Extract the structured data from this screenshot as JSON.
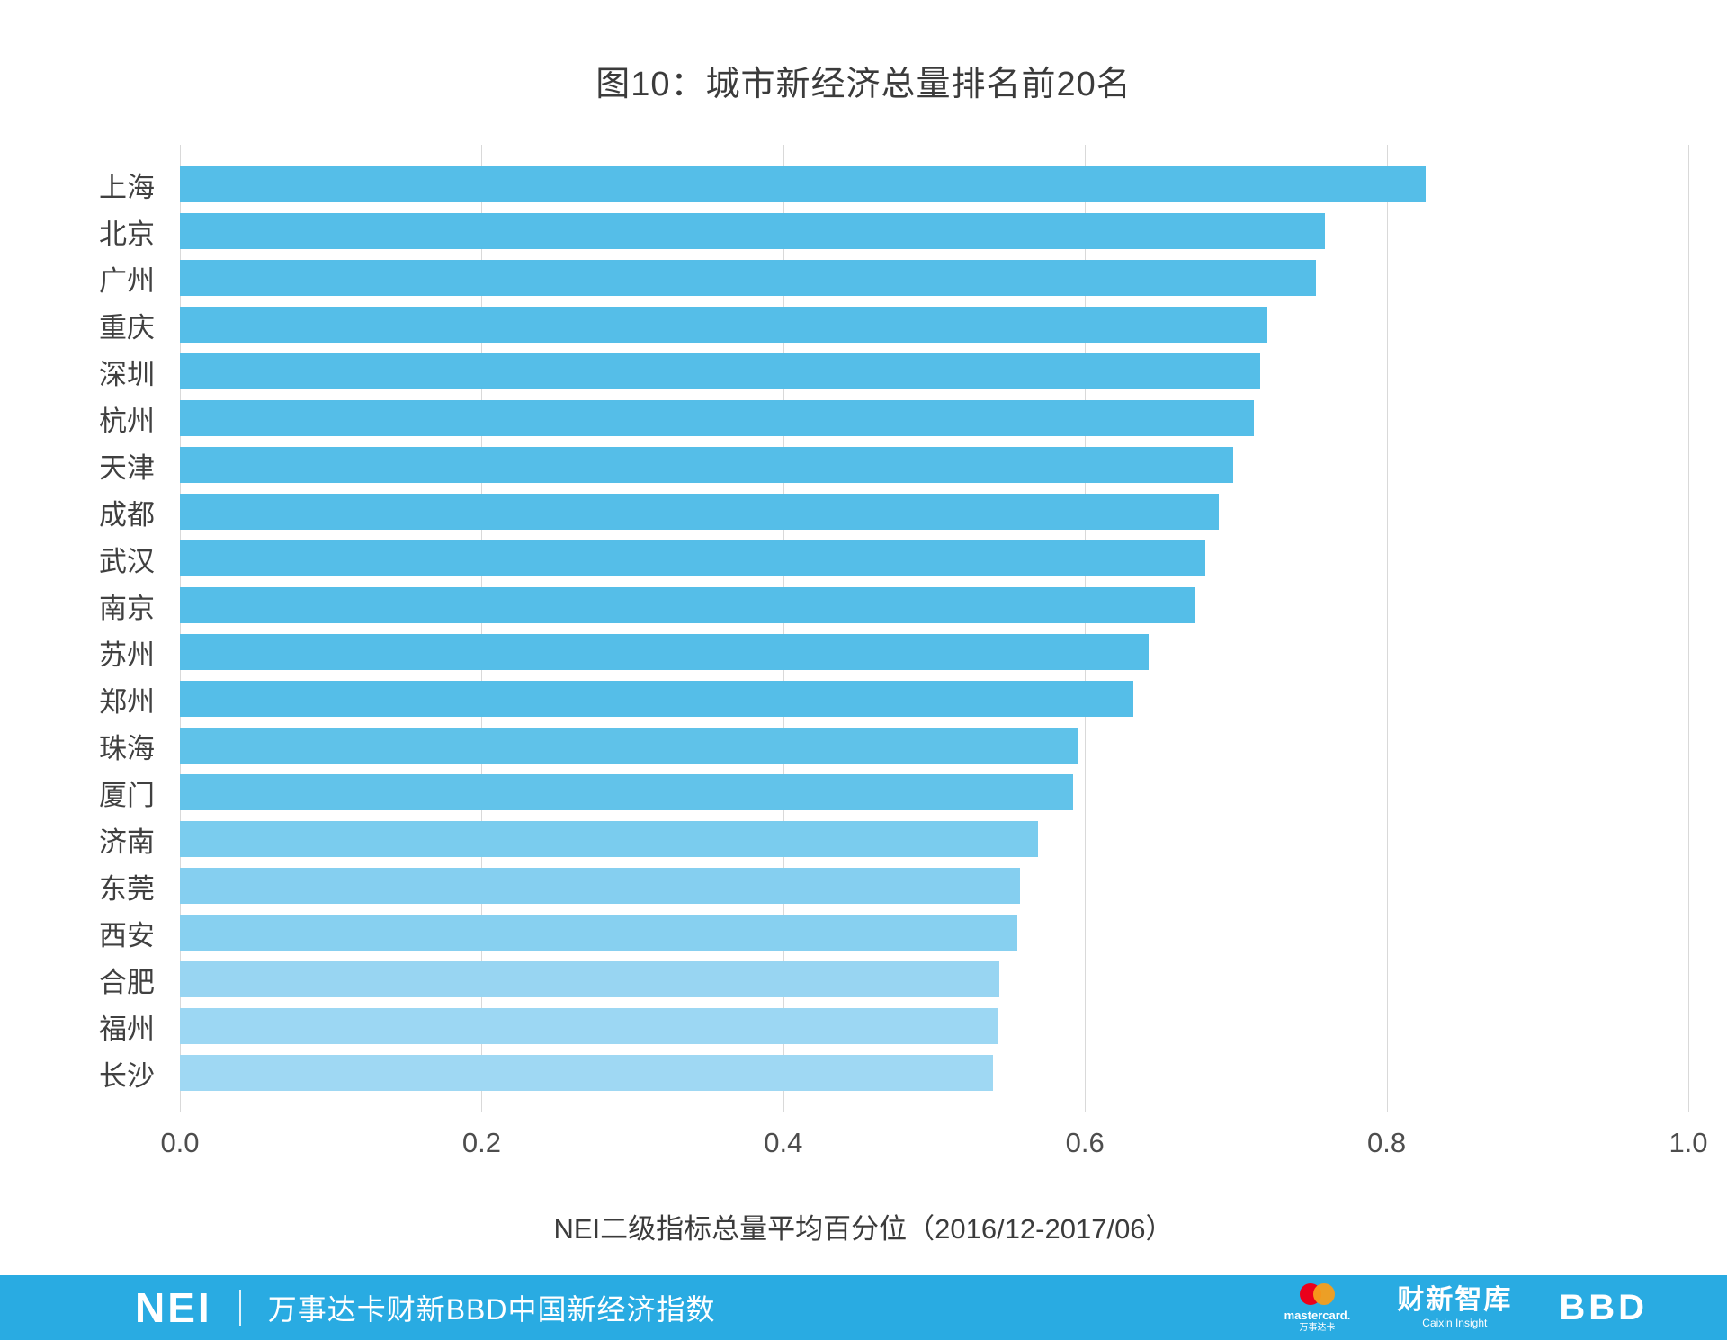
{
  "title": "图10：城市新经济总量排名前20名",
  "chart_data": {
    "type": "bar",
    "orientation": "horizontal",
    "categories": [
      "上海",
      "北京",
      "广州",
      "重庆",
      "深圳",
      "杭州",
      "天津",
      "成都",
      "武汉",
      "南京",
      "苏州",
      "郑州",
      "珠海",
      "厦门",
      "济南",
      "东莞",
      "西安",
      "合肥",
      "福州",
      "长沙"
    ],
    "values": [
      0.826,
      0.759,
      0.753,
      0.721,
      0.716,
      0.712,
      0.698,
      0.689,
      0.68,
      0.673,
      0.642,
      0.632,
      0.595,
      0.592,
      0.569,
      0.557,
      0.555,
      0.543,
      0.542,
      0.539
    ],
    "bar_colors": [
      "#55bee8",
      "#55bee8",
      "#55bee8",
      "#55bee8",
      "#55bee8",
      "#55bee8",
      "#55bee8",
      "#55bee8",
      "#55bee8",
      "#55bee8",
      "#55bee8",
      "#55bee8",
      "#5fc2e9",
      "#62c3ea",
      "#7accee",
      "#85cff0",
      "#87d0f0",
      "#98d5f2",
      "#9cd7f3",
      "#9fd8f3"
    ],
    "title": "图10：城市新经济总量排名前20名",
    "xlabel": "NEI二级指标总量平均百分位（2016/12-2017/06）",
    "ylabel": "",
    "xlim": [
      0,
      1.0
    ],
    "xticks": [
      "0.0",
      "0.2",
      "0.4",
      "0.6",
      "0.8",
      "1.0"
    ],
    "grid": true,
    "legend": false
  },
  "footer": {
    "logo": "NEI",
    "title": "万事达卡财新BBD中国新经济指数",
    "bg_color": "#29abe2",
    "brands": {
      "mastercard_label": "mastercard.",
      "mastercard_sub": "万事达卡",
      "caixin": "财新智库",
      "caixin_sub": "Caixin Insight",
      "bbd": "BBD"
    }
  }
}
